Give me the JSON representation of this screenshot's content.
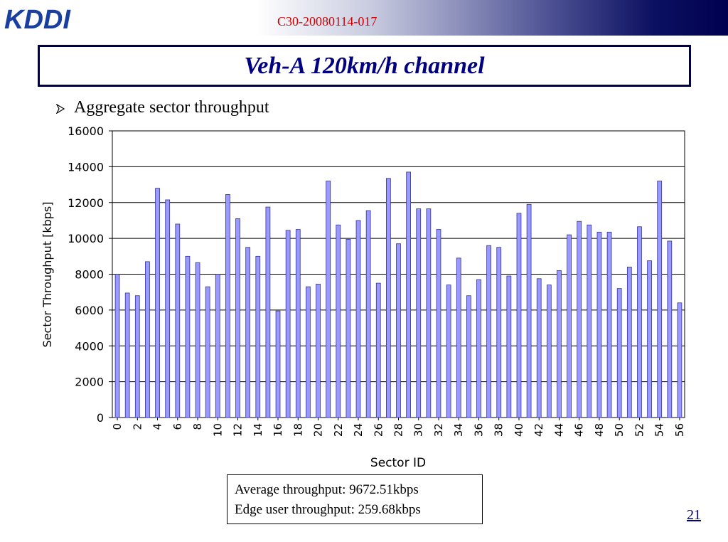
{
  "header": {
    "logo_text": "KDDI",
    "doc_id": "C30-20080114-017"
  },
  "slide": {
    "title": "Veh-A 120km/h channel",
    "bullet": "Aggregate sector throughput",
    "page_number": "21"
  },
  "summary": {
    "average": "Average throughput: 9672.51kbps",
    "edge": "Edge user throughput: 259.68kbps"
  },
  "colors": {
    "bar_fill": "#9999ff",
    "bar_stroke": "#333399",
    "title_color": "#000080",
    "doc_id_color": "#cc0000"
  },
  "chart_data": {
    "type": "bar",
    "xlabel": "Sector ID",
    "ylabel": "Sector Throughput [kbps]",
    "ylim": [
      0,
      16000
    ],
    "yticks": [
      0,
      2000,
      4000,
      6000,
      8000,
      10000,
      12000,
      14000,
      16000
    ],
    "x_tick_labels": [
      "0",
      "2",
      "4",
      "6",
      "8",
      "10",
      "12",
      "14",
      "16",
      "18",
      "20",
      "22",
      "24",
      "26",
      "28",
      "30",
      "32",
      "34",
      "36",
      "38",
      "40",
      "42",
      "44",
      "46",
      "48",
      "50",
      "52",
      "54",
      "56"
    ],
    "grid": "horizontal",
    "legend": "none",
    "categories": [
      0,
      1,
      2,
      3,
      4,
      5,
      6,
      7,
      8,
      9,
      10,
      11,
      12,
      13,
      14,
      15,
      16,
      17,
      18,
      19,
      20,
      21,
      22,
      23,
      24,
      25,
      26,
      27,
      28,
      29,
      30,
      31,
      32,
      33,
      34,
      35,
      36,
      37,
      38,
      39,
      40,
      41,
      42,
      43,
      44,
      45,
      46,
      47,
      48,
      49,
      50,
      51,
      52,
      53,
      54,
      55,
      56
    ],
    "values": [
      8000,
      6950,
      6800,
      8700,
      12800,
      12150,
      10800,
      9000,
      8650,
      7300,
      8000,
      12450,
      11100,
      9500,
      9000,
      11750,
      5950,
      10450,
      10500,
      7300,
      7450,
      13200,
      10750,
      9950,
      11000,
      11550,
      7500,
      13350,
      9700,
      13700,
      11650,
      11650,
      10500,
      7400,
      8900,
      6800,
      7700,
      9600,
      9500,
      7900,
      11400,
      11900,
      7750,
      7400,
      8200,
      10200,
      10950,
      10750,
      10350,
      10350,
      7200,
      8400,
      10650,
      8750,
      13200,
      9850,
      6400
    ]
  }
}
